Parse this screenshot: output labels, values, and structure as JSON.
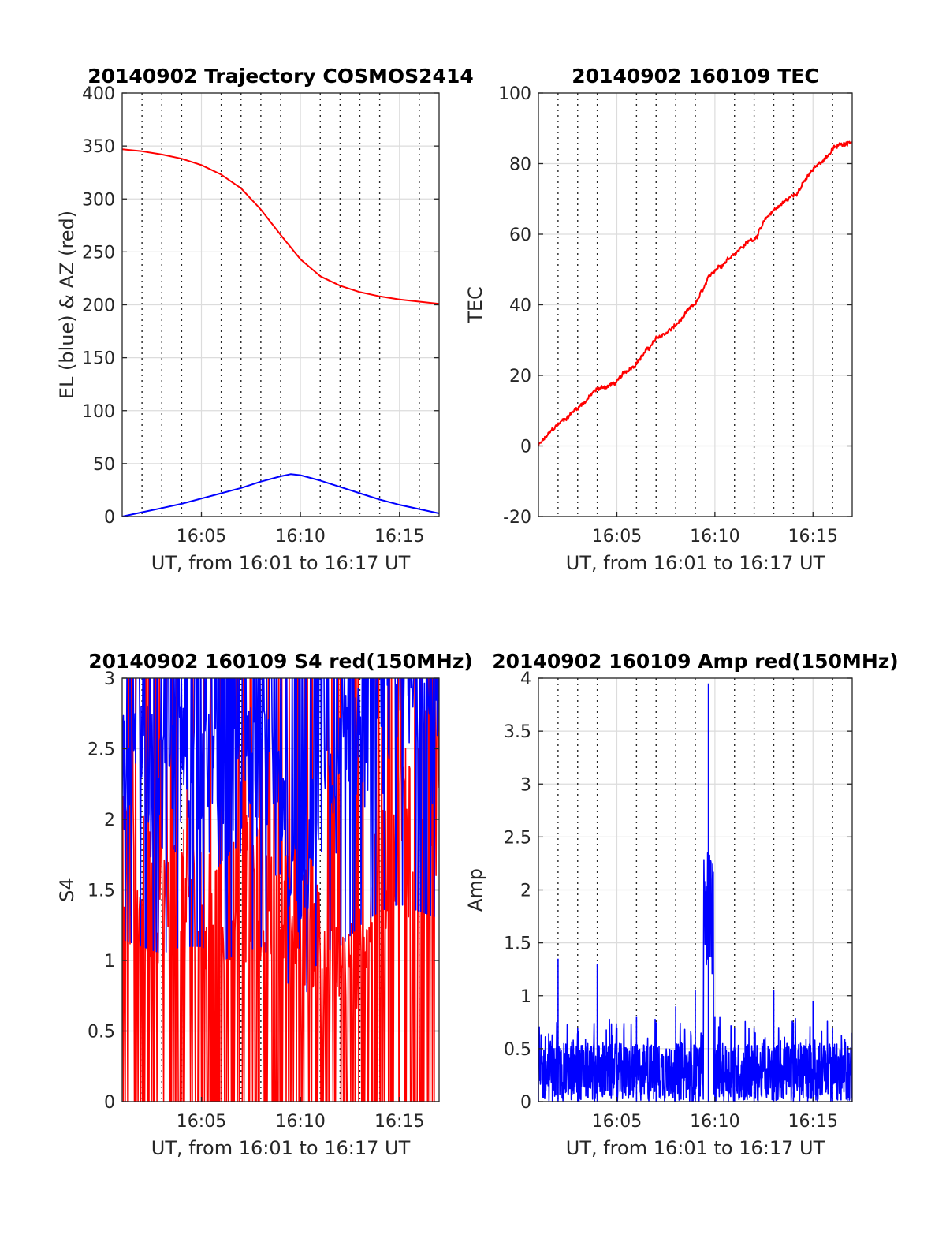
{
  "chart_data": [
    {
      "type": "line",
      "title": "20140902 Trajectory COSMOS2414",
      "xlabel": "UT, from 16:01 to 16:17 UT",
      "ylabel": "EL (blue) & AZ (red)",
      "xlim": [
        "16:01",
        "16:17"
      ],
      "ylim": [
        0,
        400
      ],
      "xticks": [
        "16:05",
        "16:10",
        "16:15"
      ],
      "yticks": [
        "0",
        "50",
        "100",
        "150",
        "200",
        "250",
        "300",
        "350",
        "400"
      ],
      "grid": true,
      "series": [
        {
          "color": "#ff0000",
          "x": [
            "16:01",
            "16:02",
            "16:03",
            "16:04",
            "16:05",
            "16:06",
            "16:07",
            "16:08",
            "16:09",
            "16:10",
            "16:11",
            "16:12",
            "16:13",
            "16:14",
            "16:15",
            "16:16",
            "16:17"
          ],
          "values": [
            347,
            345,
            342,
            338,
            332,
            323,
            310,
            290,
            266,
            243,
            227,
            218,
            212,
            208,
            205,
            203,
            201
          ]
        },
        {
          "color": "#0000ff",
          "x": [
            "16:01",
            "16:02",
            "16:03",
            "16:04",
            "16:05",
            "16:06",
            "16:07",
            "16:08",
            "16:09",
            "16:09:30",
            "16:10",
            "16:11",
            "16:12",
            "16:13",
            "16:14",
            "16:15",
            "16:16",
            "16:17"
          ],
          "values": [
            0,
            4,
            8,
            12,
            17,
            22,
            27,
            33,
            38,
            40,
            39,
            34,
            28,
            22,
            16,
            11,
            7,
            3
          ]
        }
      ]
    },
    {
      "type": "line",
      "title": "20140902 160109 TEC",
      "xlabel": "UT, from 16:01 to 16:17 UT",
      "ylabel": "TEC",
      "xlim": [
        "16:01",
        "16:17"
      ],
      "ylim": [
        -20,
        100
      ],
      "xticks": [
        "16:05",
        "16:10",
        "16:15"
      ],
      "yticks": [
        "-20",
        "0",
        "20",
        "40",
        "60",
        "80",
        "100"
      ],
      "grid": true,
      "series": [
        {
          "color": "#ff0000",
          "x": [
            "16:01",
            "16:02",
            "16:03",
            "16:04",
            "16:05",
            "16:06",
            "16:07",
            "16:08",
            "16:09",
            "16:10",
            "16:11",
            "16:12",
            "16:13",
            "16:14",
            "16:15",
            "16:16",
            "16:17"
          ],
          "values": [
            0,
            6,
            11,
            16,
            18,
            24,
            30,
            34,
            40,
            50,
            55,
            59,
            67,
            71,
            78,
            84,
            87
          ]
        }
      ]
    },
    {
      "type": "line",
      "title": "20140902 160109 S4 red(150MHz)",
      "xlabel": "UT, from 16:01 to 16:17 UT",
      "ylabel": "S4",
      "xlim": [
        "16:01",
        "16:17"
      ],
      "ylim": [
        0,
        3
      ],
      "xticks": [
        "16:05",
        "16:10",
        "16:15"
      ],
      "yticks": [
        "0",
        "0.5",
        "1",
        "1.5",
        "2",
        "2.5",
        "3"
      ],
      "grid": true,
      "series": [
        {
          "color": "#ff0000",
          "x": [
            "16:01",
            "16:02",
            "16:03",
            "16:04",
            "16:05",
            "16:06",
            "16:07",
            "16:08",
            "16:09",
            "16:10",
            "16:11",
            "16:12",
            "16:13",
            "16:14",
            "16:15",
            "16:16",
            "16:17"
          ],
          "values": [
            1.9,
            1.8,
            1.7,
            1.7,
            1.6,
            1.5,
            1.8,
            1.7,
            1.6,
            1.5,
            1.4,
            1.1,
            1.2,
            1.8,
            2.3,
            2.4,
            2.5
          ]
        },
        {
          "color": "#0000ff",
          "x": [
            "16:01",
            "16:02",
            "16:03",
            "16:04",
            "16:05",
            "16:06",
            "16:07",
            "16:08",
            "16:09",
            "16:10",
            "16:11",
            "16:12",
            "16:13",
            "16:14",
            "16:15",
            "16:16",
            "16:17"
          ],
          "values": [
            2.3,
            2.2,
            2.1,
            2.2,
            2.2,
            2.0,
            2.1,
            2.2,
            1.9,
            1.3,
            2.1,
            2.2,
            2.5,
            2.7,
            2.8,
            2.7,
            2.6
          ]
        }
      ]
    },
    {
      "type": "line",
      "title": "20140902 160109 Amp red(150MHz)",
      "xlabel": "UT, from 16:01 to 16:17 UT",
      "ylabel": "Amp",
      "xlim": [
        "16:01",
        "16:17"
      ],
      "ylim": [
        0,
        4
      ],
      "xticks": [
        "16:05",
        "16:10",
        "16:15"
      ],
      "yticks": [
        "0",
        "0.5",
        "1",
        "1.5",
        "2",
        "2.5",
        "3",
        "3.5",
        "4"
      ],
      "grid": true,
      "series": [
        {
          "color": "#0000ff",
          "x": [
            "16:01",
            "16:02",
            "16:03",
            "16:04",
            "16:05",
            "16:06",
            "16:07",
            "16:08",
            "16:09",
            "16:09:40",
            "16:10",
            "16:11",
            "16:12",
            "16:13",
            "16:14",
            "16:15",
            "16:16",
            "16:17"
          ],
          "values": [
            0.7,
            1.35,
            0.7,
            1.3,
            0.7,
            0.8,
            0.75,
            0.9,
            1.05,
            3.95,
            0.8,
            0.7,
            0.7,
            1.05,
            0.75,
            0.95,
            0.7,
            0.65
          ]
        }
      ]
    }
  ]
}
